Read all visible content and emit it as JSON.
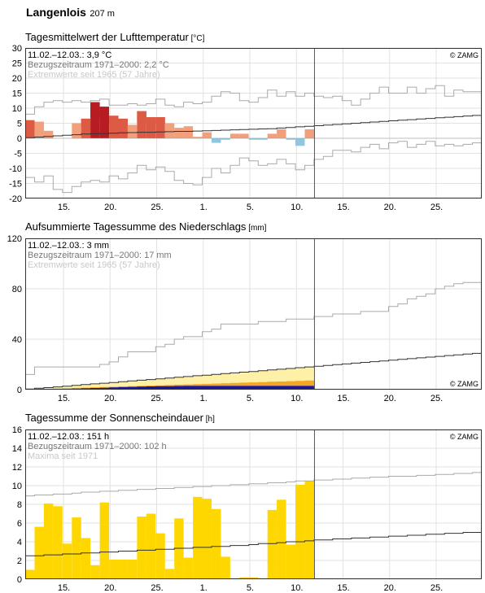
{
  "header": {
    "station": "Langenlois",
    "altitude": "207 m"
  },
  "x_ticks": [
    "15.",
    "20.",
    "25.",
    "1.",
    "5.",
    "10.",
    "15.",
    "20.",
    "25."
  ],
  "colors": {
    "warm_light": "#f2a07b",
    "warm_mid": "#dd5a44",
    "warm_dark": "#b81c23",
    "cold": "#8dc8e0",
    "precip_light": "#fff0a8",
    "precip_mid": "#f5a623",
    "precip_obs": "#1515b0",
    "sun": "#ffd700",
    "reference": "#333333",
    "extreme": "#aaaaaa",
    "divider": "#555555"
  },
  "chart_data": [
    {
      "type": "bar",
      "title": "Tagesmittelwert der Lufttemperatur",
      "unit": "[°C]",
      "ylim": [
        -20,
        30
      ],
      "yticks": [
        "30",
        "25",
        "20",
        "15",
        "10",
        "5",
        "0",
        "-5",
        "-10",
        "-15",
        "-20"
      ],
      "legend": {
        "current": "11.02.–12.03.: 3,9 °C",
        "reference": "Bezugszeitraum 1971–2000: 2,2 °C",
        "extremes": "Extremwerte seit 1965 (57 Jahre)"
      },
      "credit": "© ZAMG",
      "series": [
        {
          "name": "Tagesmittel",
          "values": [
            6.0,
            5.5,
            2.5,
            null,
            null,
            5.0,
            6.5,
            12.0,
            10.5,
            7.5,
            6.5,
            4.5,
            9.0,
            7.0,
            7.0,
            5.0,
            3.5,
            4.0,
            0.5,
            2.0,
            -1.5,
            -0.5,
            1.5,
            1.5,
            -0.5,
            -0.5,
            1.5,
            3.0,
            -0.5,
            -2.5,
            3.0
          ]
        },
        {
          "name": "Bezugszeitraum",
          "values": [
            0.2,
            0.4,
            0.6,
            0.8,
            1.0,
            1.2,
            1.4,
            1.5,
            1.6,
            1.7,
            1.8,
            1.9,
            2.0,
            2.0,
            2.1,
            2.2,
            2.3,
            2.3,
            2.4,
            2.5,
            2.6,
            2.7,
            2.8,
            2.9,
            3.0,
            3.1,
            3.2,
            3.4,
            3.6,
            3.8,
            4.0,
            4.2,
            4.4,
            4.6,
            4.8,
            5.0,
            5.2,
            5.4,
            5.6,
            5.8,
            6.0,
            6.2,
            6.4,
            6.6,
            6.8,
            7.0,
            7.2,
            7.4,
            7.6
          ]
        },
        {
          "name": "Maximum",
          "values": [
            8.0,
            10.5,
            12.0,
            12.5,
            12.0,
            12.5,
            12.0,
            12.5,
            13.0,
            11.0,
            11.0,
            11.5,
            11.0,
            11.5,
            13.0,
            11.0,
            10.5,
            12.0,
            11.5,
            12.0,
            14.0,
            15.5,
            15.0,
            12.5,
            12.0,
            13.5,
            16.0,
            14.0,
            15.5,
            14.0,
            15.0,
            14.0,
            13.5,
            14.0,
            12.5,
            11.0,
            13.0,
            15.0,
            17.0,
            15.0,
            15.0,
            17.0,
            15.0,
            16.5,
            17.5,
            14.0,
            16.0,
            15.5,
            15.5
          ]
        },
        {
          "name": "Minimum",
          "values": [
            -13.0,
            -14.5,
            -12.5,
            -17.0,
            -18.0,
            -16.0,
            -14.5,
            -14.0,
            -14.5,
            -12.5,
            -13.5,
            -11.5,
            -9.0,
            -10.5,
            -9.5,
            -11.0,
            -14.0,
            -15.0,
            -15.5,
            -13.0,
            -10.0,
            -11.5,
            -9.0,
            -6.5,
            -7.5,
            -9.0,
            -8.5,
            -7.0,
            -8.5,
            -10.5,
            -9.0,
            -7.0,
            -6.0,
            -4.0,
            -4.0,
            -4.5,
            -3.0,
            -2.0,
            -3.5,
            -1.5,
            -1.0,
            -3.0,
            -2.0,
            -1.0,
            -2.5,
            -2.0,
            -2.5,
            -2.0,
            -1.5
          ]
        }
      ]
    },
    {
      "type": "area",
      "title": "Aufsummierte Tagessumme des Niederschlags",
      "unit": "[mm]",
      "ylim": [
        0,
        120
      ],
      "yticks": [
        "120",
        "80",
        "40",
        "0"
      ],
      "legend": {
        "current": "11.02.–12.03.: 3 mm",
        "reference": "Bezugszeitraum 1971–2000: 17 mm",
        "extremes": "Extremwerte seit 1965 (57 Jahre)"
      },
      "credit": "© ZAMG",
      "series": [
        {
          "name": "Messung",
          "values": [
            0,
            0,
            0,
            0.3,
            0.5,
            0.8,
            1.0,
            1.3,
            1.5,
            1.8,
            2.0,
            2.2,
            2.4,
            2.6,
            2.7,
            2.8,
            2.9,
            3.0,
            3.0,
            3.0,
            3.0,
            3.0,
            3.0,
            3.0,
            3.0,
            3.0,
            3.0,
            3.0,
            3.0,
            3.0,
            3.0
          ]
        },
        {
          "name": "Bezugszeitraum",
          "values": [
            0.5,
            1.1,
            1.6,
            2.2,
            2.8,
            3.4,
            4.0,
            4.6,
            5.1,
            5.7,
            6.3,
            6.9,
            7.5,
            8.0,
            8.6,
            9.2,
            9.8,
            10.4,
            11.0,
            11.5,
            12.1,
            12.7,
            13.3,
            13.9,
            14.4,
            15.0,
            15.6,
            16.2,
            16.8,
            17.4,
            18.0,
            18.6,
            19.2,
            19.8,
            20.4,
            21.0,
            21.6,
            22.2,
            22.8,
            23.4,
            24.0,
            24.6,
            25.2,
            25.8,
            26.4,
            27.0,
            27.6,
            28.2,
            28.8
          ]
        },
        {
          "name": "Maximum",
          "values": [
            12,
            18,
            18,
            18,
            18,
            18,
            18,
            18,
            20,
            22,
            26,
            30,
            30,
            30,
            34,
            36,
            40,
            42,
            42,
            46,
            48,
            52,
            52,
            52,
            52,
            54,
            54,
            54,
            56,
            56,
            56,
            58,
            58,
            60,
            60,
            60,
            62,
            62,
            62,
            66,
            68,
            72,
            74,
            76,
            80,
            82,
            84,
            85,
            85
          ]
        }
      ]
    },
    {
      "type": "bar",
      "title": "Tagessumme der Sonnenscheindauer",
      "unit": "[h]",
      "ylim": [
        0,
        16
      ],
      "yticks": [
        "16",
        "14",
        "12",
        "10",
        "8",
        "6",
        "4",
        "2",
        "0"
      ],
      "legend": {
        "current": "11.02.–12.03.: 151 h",
        "reference": "Bezugszeitraum 1971–2000: 102 h",
        "extremes": "Maxima seit 1971"
      },
      "credit": "© ZAMG",
      "series": [
        {
          "name": "Sonnenscheindauer",
          "values": [
            1.0,
            5.6,
            8.1,
            7.8,
            3.8,
            6.6,
            4.4,
            1.5,
            8.2,
            2.1,
            2.1,
            2.1,
            6.7,
            7.0,
            4.9,
            1.1,
            6.5,
            2.3,
            8.8,
            8.6,
            7.5,
            2.4,
            0.0,
            0.2,
            0.2,
            0.1,
            7.4,
            8.5,
            3.7,
            10.1,
            10.5
          ]
        },
        {
          "name": "Bezugszeitraum",
          "values": [
            2.5,
            2.5,
            2.6,
            2.6,
            2.7,
            2.7,
            2.8,
            2.8,
            2.9,
            2.9,
            3.0,
            3.0,
            3.1,
            3.1,
            3.2,
            3.2,
            3.3,
            3.3,
            3.4,
            3.4,
            3.5,
            3.5,
            3.6,
            3.6,
            3.7,
            3.8,
            3.8,
            3.9,
            4.0,
            4.0,
            4.1,
            4.2,
            4.2,
            4.3,
            4.3,
            4.4,
            4.4,
            4.5,
            4.5,
            4.6,
            4.6,
            4.7,
            4.7,
            4.8,
            4.8,
            4.9,
            4.9,
            5.0,
            5.0
          ]
        },
        {
          "name": "Maxima",
          "values": [
            8.9,
            9.0,
            9.0,
            9.1,
            9.1,
            9.2,
            9.3,
            9.3,
            9.4,
            9.4,
            9.5,
            9.5,
            9.6,
            9.6,
            9.7,
            9.7,
            9.8,
            9.8,
            9.9,
            9.9,
            10.0,
            10.0,
            10.1,
            10.1,
            10.2,
            10.2,
            10.3,
            10.3,
            10.4,
            10.5,
            10.5,
            10.6,
            10.6,
            10.7,
            10.7,
            10.8,
            10.8,
            10.9,
            10.9,
            11.0,
            11.0,
            11.0,
            11.1,
            11.1,
            11.2,
            11.2,
            11.3,
            11.3,
            11.4
          ]
        }
      ]
    }
  ]
}
